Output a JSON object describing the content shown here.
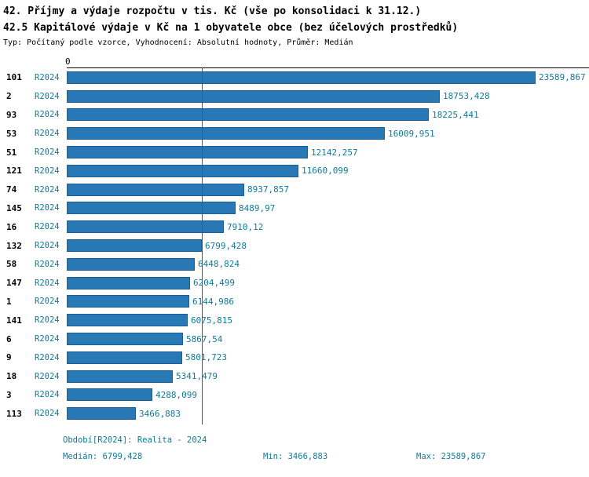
{
  "title_line1": "42. Příjmy a výdaje rozpočtu v tis. Kč (vše po konsolidaci k 31.12.)",
  "title_line2": "42.5 Kapitálové výdaje v Kč na 1 obyvatele obce (bez účelových prostředků)",
  "subtitle": "Typ: Počítaný podle vzorce, Vyhodnocení: Absolutní hodnoty, Průměr: Medián",
  "axis": {
    "zero_label": "0"
  },
  "chart_data": {
    "type": "bar",
    "orientation": "horizontal",
    "series_label": "R2024",
    "categories": [
      "101",
      "2",
      "93",
      "53",
      "51",
      "121",
      "74",
      "145",
      "16",
      "132",
      "58",
      "147",
      "1",
      "141",
      "6",
      "9",
      "18",
      "3",
      "113"
    ],
    "values": [
      23589.867,
      18753.428,
      18225.441,
      16009.951,
      12142.257,
      11660.099,
      8937.857,
      8489.97,
      7910.12,
      6799.428,
      6448.824,
      6204.499,
      6144.986,
      6075.815,
      5867.54,
      5801.723,
      5341.479,
      4288.099,
      3466.883
    ],
    "value_labels": [
      "23589,867",
      "18753,428",
      "18225,441",
      "16009,951",
      "12142,257",
      "11660,099",
      "8937,857",
      "8489,97",
      "7910,12",
      "6799,428",
      "6448,824",
      "6204,499",
      "6144,986",
      "6075,815",
      "5867,54",
      "5801,723",
      "5341,479",
      "4288,099",
      "3466,883"
    ],
    "xlim": [
      0,
      23589.867
    ],
    "median": 6799.428,
    "bar_color": "#2878b5",
    "label_color": "#0e7a99",
    "grid": "median-line-only",
    "legend_position": "none"
  },
  "footer": {
    "period": "Období[R2024]: Realita - 2024",
    "median": "Medián: 6799,428",
    "min": "Min: 3466,883",
    "max": "Max: 23589,867"
  }
}
